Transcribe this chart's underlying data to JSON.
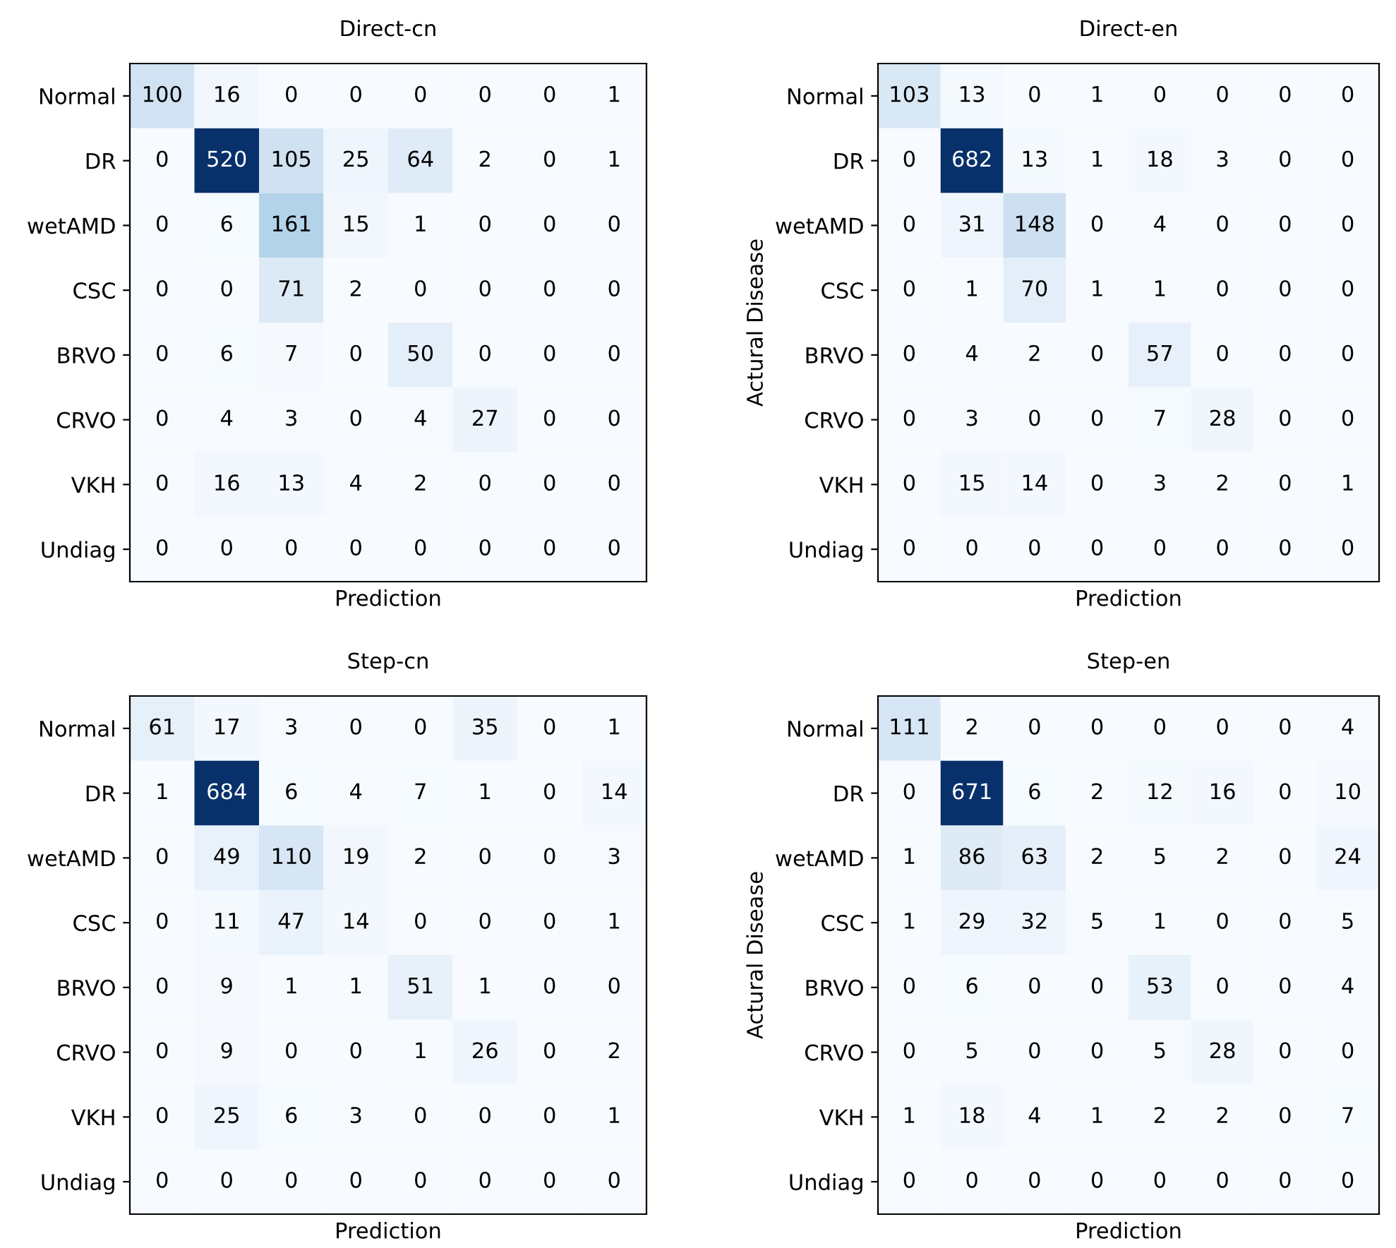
{
  "chart_data": [
    {
      "type": "heatmap",
      "title": "Direct-cn",
      "xlabel": "Prediction",
      "tick_labels": "y",
      "data_labels": true,
      "categories": [
        null,
        null,
        null,
        null,
        null,
        null,
        null,
        null
      ],
      "y_categories": [
        "Normal",
        "DR",
        "wetAMD",
        "CSC",
        "BRVO",
        "CRVO",
        "VKH",
        "Undiag"
      ],
      "cells": [
        [
          100,
          16,
          0,
          0,
          0,
          0,
          0,
          1
        ],
        [
          0,
          520,
          105,
          25,
          64,
          2,
          0,
          1
        ],
        [
          0,
          6,
          161,
          15,
          1,
          0,
          0,
          0
        ],
        [
          0,
          0,
          71,
          2,
          0,
          0,
          0,
          0
        ],
        [
          0,
          6,
          7,
          0,
          50,
          0,
          0,
          0
        ],
        [
          0,
          4,
          3,
          0,
          4,
          27,
          0,
          0
        ],
        [
          0,
          16,
          13,
          4,
          2,
          0,
          0,
          0
        ],
        [
          0,
          0,
          0,
          0,
          0,
          0,
          0,
          0
        ]
      ]
    },
    {
      "type": "heatmap",
      "title": "Direct-en",
      "xlabel": "Prediction",
      "ylabel": "Actural Disease",
      "tick_labels": "y",
      "data_labels": true,
      "categories": [
        null,
        null,
        null,
        null,
        null,
        null,
        null,
        null
      ],
      "y_categories": [
        "Normal",
        "DR",
        "wetAMD",
        "CSC",
        "BRVO",
        "CRVO",
        "VKH",
        "Undiag"
      ],
      "cells": [
        [
          103,
          13,
          0,
          1,
          0,
          0,
          0,
          0
        ],
        [
          0,
          682,
          13,
          1,
          18,
          3,
          0,
          0
        ],
        [
          0,
          31,
          148,
          0,
          4,
          0,
          0,
          0
        ],
        [
          0,
          1,
          70,
          1,
          1,
          0,
          0,
          0
        ],
        [
          0,
          4,
          2,
          0,
          57,
          0,
          0,
          0
        ],
        [
          0,
          3,
          0,
          0,
          7,
          28,
          0,
          0
        ],
        [
          0,
          15,
          14,
          0,
          3,
          2,
          0,
          1
        ],
        [
          0,
          0,
          0,
          0,
          0,
          0,
          0,
          0
        ]
      ]
    },
    {
      "type": "heatmap",
      "title": "Step-cn",
      "xlabel": "Prediction",
      "tick_labels": "y",
      "data_labels": true,
      "categories": [
        null,
        null,
        null,
        null,
        null,
        null,
        null,
        null
      ],
      "y_categories": [
        "Normal",
        "DR",
        "wetAMD",
        "CSC",
        "BRVO",
        "CRVO",
        "VKH",
        "Undiag"
      ],
      "cells": [
        [
          61,
          17,
          3,
          0,
          0,
          35,
          0,
          1
        ],
        [
          1,
          684,
          6,
          4,
          7,
          1,
          0,
          14
        ],
        [
          0,
          49,
          110,
          19,
          2,
          0,
          0,
          3
        ],
        [
          0,
          11,
          47,
          14,
          0,
          0,
          0,
          1
        ],
        [
          0,
          9,
          1,
          1,
          51,
          1,
          0,
          0
        ],
        [
          0,
          9,
          0,
          0,
          1,
          26,
          0,
          2
        ],
        [
          0,
          25,
          6,
          3,
          0,
          0,
          0,
          1
        ],
        [
          0,
          0,
          0,
          0,
          0,
          0,
          0,
          0
        ]
      ]
    },
    {
      "type": "heatmap",
      "title": "Step-en",
      "xlabel": "Prediction",
      "ylabel": "Actural Disease",
      "tick_labels": "y",
      "data_labels": true,
      "categories": [
        null,
        null,
        null,
        null,
        null,
        null,
        null,
        null
      ],
      "y_categories": [
        "Normal",
        "DR",
        "wetAMD",
        "CSC",
        "BRVO",
        "CRVO",
        "VKH",
        "Undiag"
      ],
      "cells": [
        [
          111,
          2,
          0,
          0,
          0,
          0,
          0,
          4
        ],
        [
          0,
          671,
          6,
          2,
          12,
          16,
          0,
          10
        ],
        [
          1,
          86,
          63,
          2,
          5,
          2,
          0,
          24
        ],
        [
          1,
          29,
          32,
          5,
          1,
          0,
          0,
          5
        ],
        [
          0,
          6,
          0,
          0,
          53,
          0,
          0,
          4
        ],
        [
          0,
          5,
          0,
          0,
          5,
          28,
          0,
          0
        ],
        [
          1,
          18,
          4,
          1,
          2,
          2,
          0,
          7
        ],
        [
          0,
          0,
          0,
          0,
          0,
          0,
          0,
          0
        ]
      ]
    }
  ]
}
